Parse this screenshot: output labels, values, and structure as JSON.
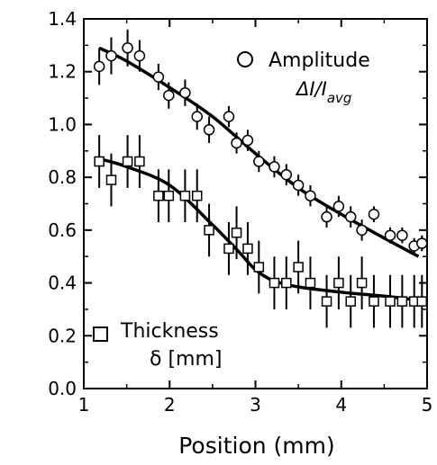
{
  "chart_data": {
    "type": "scatter",
    "title": "",
    "xlabel": "Position (mm)",
    "ylabel": "",
    "xlim": [
      1,
      5
    ],
    "ylim": [
      0,
      1.4
    ],
    "xticks": [
      1,
      2,
      3,
      4,
      5
    ],
    "yticks": [
      0.0,
      0.2,
      0.4,
      0.6,
      0.8,
      1.0,
      1.2,
      1.4
    ],
    "xtick_labels": [
      "1",
      "2",
      "3",
      "4",
      "5"
    ],
    "ytick_labels": [
      "0.0",
      "0.2",
      "0.4",
      "0.6",
      "0.8",
      "1.0",
      "1.2",
      "1.4"
    ],
    "grid": false,
    "legend": [
      {
        "marker": "circle",
        "label": "Amplitude",
        "sublabel": "ΔI/I",
        "sublabel_sub": "avg"
      },
      {
        "marker": "square",
        "label": "Thickness",
        "sublabel": "δ [mm]"
      }
    ],
    "series": [
      {
        "name": "Amplitude",
        "marker": "circle",
        "x": [
          1.18,
          1.32,
          1.51,
          1.65,
          1.87,
          1.99,
          2.18,
          2.32,
          2.46,
          2.69,
          2.78,
          2.91,
          3.04,
          3.22,
          3.36,
          3.5,
          3.64,
          3.83,
          3.97,
          4.11,
          4.24,
          4.38,
          4.57,
          4.71,
          4.85,
          4.94
        ],
        "y": [
          1.22,
          1.26,
          1.29,
          1.26,
          1.18,
          1.11,
          1.12,
          1.03,
          0.98,
          1.03,
          0.93,
          0.94,
          0.86,
          0.84,
          0.81,
          0.77,
          0.73,
          0.65,
          0.69,
          0.65,
          0.6,
          0.66,
          0.58,
          0.58,
          0.54,
          0.55
        ],
        "err": [
          0.07,
          0.07,
          0.07,
          0.06,
          0.05,
          0.05,
          0.05,
          0.05,
          0.05,
          0.04,
          0.04,
          0.04,
          0.04,
          0.04,
          0.04,
          0.04,
          0.04,
          0.04,
          0.04,
          0.04,
          0.04,
          0.03,
          0.03,
          0.03,
          0.03,
          0.03
        ]
      },
      {
        "name": "Thickness",
        "marker": "square",
        "x": [
          1.18,
          1.32,
          1.51,
          1.65,
          1.87,
          1.99,
          2.18,
          2.32,
          2.46,
          2.69,
          2.78,
          2.91,
          3.04,
          3.22,
          3.36,
          3.5,
          3.64,
          3.83,
          3.97,
          4.11,
          4.24,
          4.38,
          4.57,
          4.71,
          4.85,
          4.94
        ],
        "y": [
          0.86,
          0.79,
          0.86,
          0.86,
          0.73,
          0.73,
          0.73,
          0.73,
          0.6,
          0.53,
          0.59,
          0.53,
          0.46,
          0.4,
          0.4,
          0.46,
          0.4,
          0.33,
          0.4,
          0.33,
          0.4,
          0.33,
          0.33,
          0.33,
          0.33,
          0.33
        ],
        "err": [
          0.1,
          0.1,
          0.1,
          0.1,
          0.1,
          0.1,
          0.1,
          0.1,
          0.1,
          0.1,
          0.1,
          0.1,
          0.1,
          0.1,
          0.1,
          0.1,
          0.1,
          0.1,
          0.1,
          0.1,
          0.1,
          0.1,
          0.1,
          0.1,
          0.1,
          0.1
        ]
      }
    ],
    "fits": [
      {
        "name": "Amplitude fit",
        "x": [
          1.18,
          1.5,
          2.0,
          2.5,
          3.0,
          3.5,
          4.0,
          4.5,
          4.9
        ],
        "y": [
          1.29,
          1.24,
          1.14,
          1.03,
          0.89,
          0.76,
          0.66,
          0.57,
          0.5
        ]
      },
      {
        "name": "Thickness fit",
        "x": [
          1.18,
          1.5,
          2.0,
          2.5,
          2.8,
          3.0,
          3.2,
          3.5,
          4.0,
          4.5,
          4.9
        ],
        "y": [
          0.87,
          0.84,
          0.77,
          0.62,
          0.52,
          0.45,
          0.41,
          0.385,
          0.365,
          0.35,
          0.335
        ]
      }
    ]
  }
}
